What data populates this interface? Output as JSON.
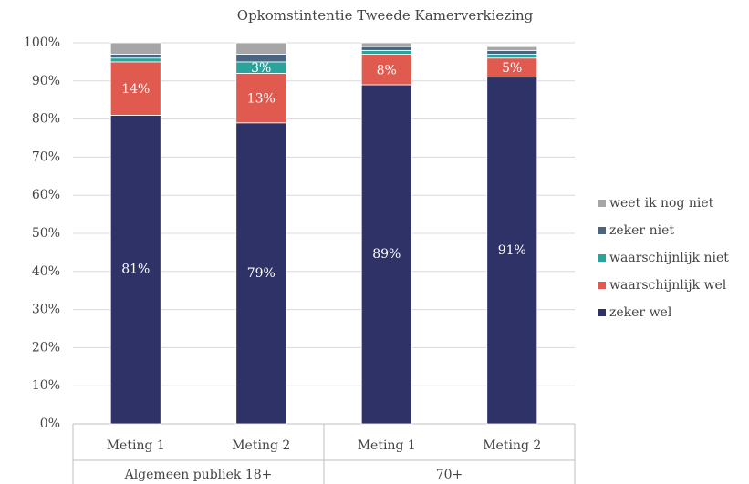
{
  "chart_data": {
    "type": "stacked_bar",
    "title": "Opkomstintentie Tweede Kamerverkiezing",
    "categories": [
      "Meting 1",
      "Meting 2",
      "Meting 1",
      "Meting 2"
    ],
    "groups": [
      {
        "label": "Algemeen publiek 18+",
        "count": 2
      },
      {
        "label": "70+",
        "count": 2
      }
    ],
    "series": [
      {
        "name": "zeker wel",
        "color": "#2e3267",
        "values": [
          81,
          79,
          89,
          91
        ],
        "value_labels": [
          "81%",
          "79%",
          "89%",
          "91%"
        ]
      },
      {
        "name": "waarschijnlijk wel",
        "color": "#e05a4f",
        "values": [
          14,
          13,
          8,
          5
        ],
        "value_labels": [
          "14%",
          "13%",
          "8%",
          "5%"
        ]
      },
      {
        "name": "waarschijnlijk niet",
        "color": "#2aa39a",
        "values": [
          1,
          3,
          1,
          1
        ],
        "value_labels": [
          null,
          "3%",
          null,
          null
        ]
      },
      {
        "name": "zeker niet",
        "color": "#4a6580",
        "values": [
          1,
          2,
          1,
          1
        ]
      },
      {
        "name": "weet ik nog niet",
        "color": "#a6a6a6",
        "values": [
          3,
          3,
          1,
          1
        ]
      }
    ],
    "ylim": [
      0,
      100
    ],
    "yticks": [
      {
        "value": 0,
        "label": "0%"
      },
      {
        "value": 10,
        "label": "10%"
      },
      {
        "value": 20,
        "label": "20%"
      },
      {
        "value": 30,
        "label": "30%"
      },
      {
        "value": 40,
        "label": "40%"
      },
      {
        "value": 50,
        "label": "50%"
      },
      {
        "value": 60,
        "label": "60%"
      },
      {
        "value": 70,
        "label": "70%"
      },
      {
        "value": 80,
        "label": "80%"
      },
      {
        "value": 90,
        "label": "90%"
      },
      {
        "value": 100,
        "label": "100%"
      }
    ],
    "grid": true,
    "legend": "right"
  }
}
